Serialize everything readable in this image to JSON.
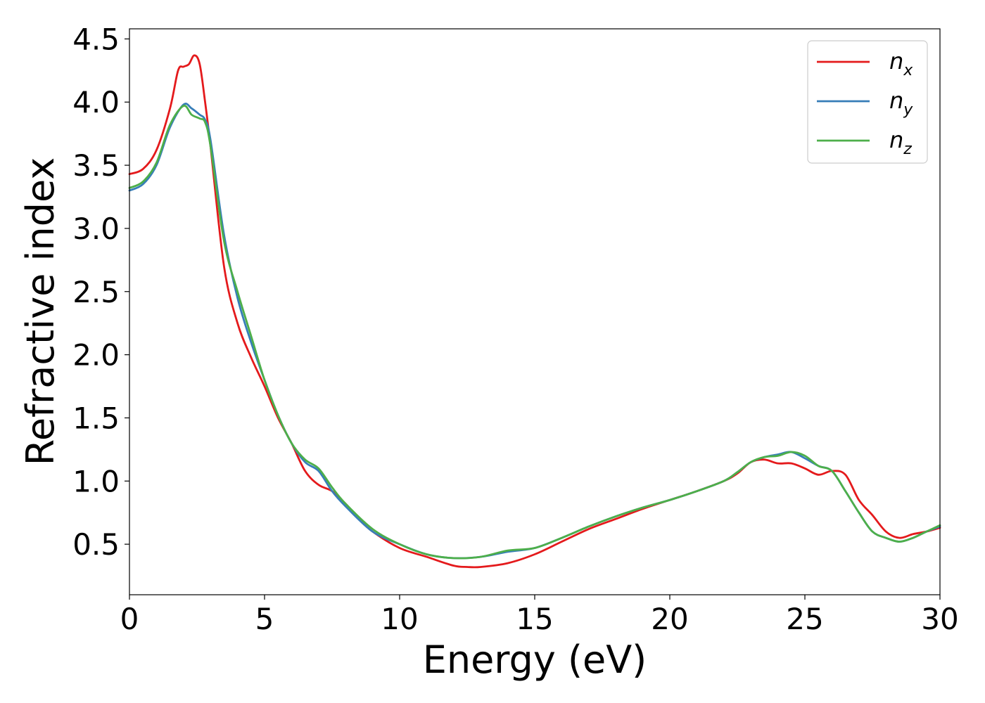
{
  "chart_data": {
    "type": "line",
    "title": "",
    "xlabel": "Energy (eV)",
    "ylabel": "Refractive index",
    "xlim": [
      0,
      30
    ],
    "ylim": [
      0.1,
      4.58
    ],
    "xticks": [
      "0",
      "5",
      "10",
      "15",
      "20",
      "25",
      "30"
    ],
    "xtick_values": [
      0,
      5,
      10,
      15,
      20,
      25,
      30
    ],
    "yticks": [
      "0.5",
      "1.0",
      "1.5",
      "2.0",
      "2.5",
      "3.0",
      "3.5",
      "4.0",
      "4.5"
    ],
    "ytick_values": [
      0.5,
      1.0,
      1.5,
      2.0,
      2.5,
      3.0,
      3.5,
      4.0,
      4.5
    ],
    "grid": false,
    "legend_position": "top-right",
    "series": [
      {
        "name": "n_x",
        "base": "n",
        "sub": "x",
        "color": "#e41a1c",
        "x": [
          0,
          0.5,
          1.0,
          1.5,
          1.8,
          2.0,
          2.2,
          2.4,
          2.6,
          2.8,
          3.0,
          3.5,
          4.0,
          4.5,
          5.0,
          5.5,
          6.0,
          6.5,
          7.0,
          7.5,
          8.0,
          8.5,
          9.0,
          10.0,
          11.0,
          12.0,
          12.5,
          13.0,
          14.0,
          15.0,
          16.0,
          17.0,
          18.0,
          19.0,
          20.0,
          21.0,
          22.0,
          22.5,
          23.0,
          23.5,
          24.0,
          24.5,
          25.0,
          25.5,
          26.0,
          26.5,
          27.0,
          27.5,
          28.0,
          28.5,
          29.0,
          29.5,
          30.0
        ],
        "y": [
          3.43,
          3.47,
          3.62,
          3.95,
          4.25,
          4.28,
          4.3,
          4.37,
          4.3,
          4.0,
          3.65,
          2.7,
          2.25,
          1.98,
          1.75,
          1.5,
          1.3,
          1.08,
          0.97,
          0.92,
          0.82,
          0.7,
          0.6,
          0.47,
          0.4,
          0.33,
          0.32,
          0.32,
          0.35,
          0.42,
          0.52,
          0.62,
          0.7,
          0.78,
          0.85,
          0.92,
          1.0,
          1.06,
          1.15,
          1.17,
          1.14,
          1.14,
          1.1,
          1.05,
          1.08,
          1.05,
          0.85,
          0.73,
          0.6,
          0.55,
          0.58,
          0.6,
          0.63
        ]
      },
      {
        "name": "n_y",
        "base": "n",
        "sub": "y",
        "color": "#377eb8",
        "x": [
          0,
          0.5,
          1.0,
          1.5,
          2.0,
          2.3,
          2.6,
          2.8,
          3.0,
          3.5,
          4.0,
          4.5,
          5.0,
          5.5,
          6.0,
          6.5,
          7.0,
          7.5,
          8.0,
          9.0,
          10.0,
          11.0,
          12.0,
          13.0,
          14.0,
          15.0,
          16.0,
          17.0,
          18.0,
          19.0,
          20.0,
          21.0,
          22.0,
          22.5,
          23.0,
          23.5,
          24.0,
          24.5,
          25.0,
          25.5,
          26.0,
          26.5,
          27.0,
          27.5,
          28.0,
          28.5,
          29.0,
          29.5,
          30.0
        ],
        "y": [
          3.3,
          3.35,
          3.5,
          3.8,
          3.98,
          3.95,
          3.9,
          3.86,
          3.7,
          2.95,
          2.45,
          2.1,
          1.8,
          1.52,
          1.3,
          1.15,
          1.08,
          0.92,
          0.8,
          0.6,
          0.5,
          0.42,
          0.39,
          0.4,
          0.44,
          0.47,
          0.55,
          0.64,
          0.72,
          0.79,
          0.85,
          0.92,
          1.0,
          1.07,
          1.15,
          1.19,
          1.21,
          1.23,
          1.18,
          1.12,
          1.08,
          0.92,
          0.75,
          0.6,
          0.55,
          0.52,
          0.55,
          0.6,
          0.64
        ]
      },
      {
        "name": "n_z",
        "base": "n",
        "sub": "z",
        "color": "#4daf4a",
        "x": [
          0,
          0.5,
          1.0,
          1.5,
          2.0,
          2.3,
          2.6,
          2.8,
          3.0,
          3.5,
          4.0,
          4.5,
          5.0,
          5.5,
          6.0,
          6.5,
          7.0,
          7.5,
          8.0,
          9.0,
          10.0,
          11.0,
          12.0,
          13.0,
          14.0,
          15.0,
          16.0,
          17.0,
          18.0,
          19.0,
          20.0,
          21.0,
          22.0,
          22.5,
          23.0,
          23.5,
          24.0,
          24.5,
          25.0,
          25.5,
          26.0,
          26.5,
          27.0,
          27.5,
          28.0,
          28.5,
          29.0,
          29.5,
          30.0
        ],
        "y": [
          3.32,
          3.37,
          3.52,
          3.82,
          3.97,
          3.9,
          3.87,
          3.84,
          3.65,
          2.9,
          2.5,
          2.15,
          1.8,
          1.52,
          1.3,
          1.17,
          1.1,
          0.95,
          0.82,
          0.62,
          0.5,
          0.42,
          0.39,
          0.4,
          0.45,
          0.47,
          0.55,
          0.64,
          0.72,
          0.79,
          0.85,
          0.92,
          1.0,
          1.07,
          1.15,
          1.19,
          1.2,
          1.23,
          1.2,
          1.12,
          1.08,
          0.92,
          0.75,
          0.6,
          0.55,
          0.52,
          0.55,
          0.6,
          0.65
        ]
      }
    ]
  }
}
